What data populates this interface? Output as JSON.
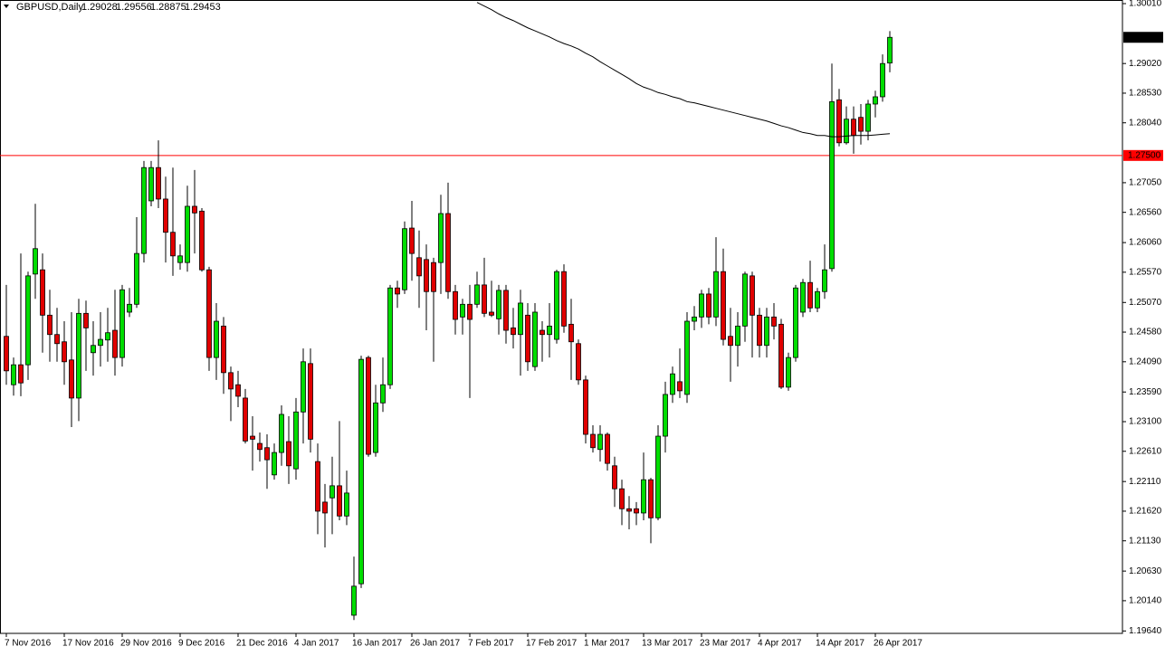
{
  "chart_data": {
    "type": "candlestick",
    "title": "GBPUSD,Daily",
    "categories": [
      "7 Nov 2016",
      null,
      null,
      null,
      null,
      null,
      null,
      null,
      "17 Nov 2016",
      null,
      null,
      null,
      null,
      null,
      null,
      null,
      "29 Nov 2016",
      null,
      null,
      null,
      null,
      null,
      null,
      null,
      "9 Dec 2016",
      null,
      null,
      null,
      null,
      null,
      null,
      null,
      "21 Dec 2016",
      null,
      null,
      null,
      null,
      null,
      null,
      null,
      "4 Jan 2017",
      null,
      null,
      null,
      null,
      null,
      null,
      null,
      "16 Jan 2017",
      null,
      null,
      null,
      null,
      null,
      null,
      null,
      "26 Jan 2017",
      null,
      null,
      null,
      null,
      null,
      null,
      null,
      "7 Feb 2017",
      null,
      null,
      null,
      null,
      null,
      null,
      null,
      "17 Feb 2017",
      null,
      null,
      null,
      null,
      null,
      null,
      null,
      "1 Mar 2017",
      null,
      null,
      null,
      null,
      null,
      null,
      null,
      "13 Mar 2017",
      null,
      null,
      null,
      null,
      null,
      null,
      null,
      "23 Mar 2017",
      null,
      null,
      null,
      null,
      null,
      null,
      null,
      "4 Apr 2017",
      null,
      null,
      null,
      null,
      null,
      null,
      null,
      "14 Apr 2017",
      null,
      null,
      null,
      null,
      null,
      null,
      null,
      "26 Apr 2017",
      null,
      null
    ],
    "open": [
      1.2451,
      1.2371,
      1.2404,
      1.2404,
      1.2554,
      1.2561,
      1.2486,
      1.2454,
      1.2442,
      1.2412,
      1.2349,
      1.2489,
      1.2424,
      1.2436,
      1.2445,
      1.2461,
      1.2416,
      1.2491,
      1.2504,
      1.2588,
      1.2675,
      1.273,
      1.2678,
      1.2623,
      1.2573,
      1.2573,
      1.2666,
      1.2658,
      1.2561,
      1.2416,
      1.2468,
      1.2391,
      1.2371,
      1.2349,
      1.2286,
      1.2274,
      1.2267,
      1.2222,
      1.2259,
      1.2277,
      1.2232,
      1.2326,
      1.2406,
      1.2244,
      1.2177,
      1.2184,
      1.2204,
      1.2154,
      1.199,
      1.2042,
      1.2416,
      1.2259,
      1.2341,
      1.2371,
      1.2531,
      1.2528,
      1.263,
      1.2581,
      1.2578,
      1.2573,
      1.2573,
      1.2654,
      1.2525,
      1.2483,
      1.2504,
      1.2504,
      1.2536,
      1.2491,
      1.248,
      1.2527,
      1.2465,
      1.2454,
      1.2486,
      1.2401,
      1.2461,
      1.2454,
      1.2446,
      1.2558,
      1.2471,
      1.2439,
      1.2379,
      1.2289,
      1.2264,
      1.2289,
      1.2237,
      1.2199,
      1.2166,
      1.2166,
      1.2159,
      1.2214,
      1.2151,
      1.2286,
      1.2355,
      1.2376,
      1.2355,
      1.2476,
      1.2483,
      1.2521,
      1.2483,
      1.2558,
      1.2451,
      1.2436,
      1.2468,
      1.2551,
      1.2486,
      1.2436,
      1.2483,
      1.2471,
      1.2367,
      1.2416,
      1.2491,
      1.254,
      1.2498,
      1.2525,
      1.2563,
      1.2842,
      1.2771,
      1.281,
      1.2813,
      1.279,
      1.2835,
      1.2847,
      1.29028
    ],
    "high": [
      1.2536,
      1.2416,
      1.2588,
      1.2558,
      1.267,
      1.2588,
      1.2528,
      1.2498,
      1.2476,
      1.2491,
      1.2513,
      1.251,
      1.2476,
      1.2491,
      1.2498,
      1.2528,
      1.2536,
      1.2531,
      1.2648,
      1.2741,
      1.2741,
      1.2775,
      1.2715,
      1.273,
      1.2603,
      1.27,
      1.2726,
      1.2663,
      1.2566,
      1.2506,
      1.2483,
      1.2401,
      1.2394,
      1.2364,
      1.2319,
      1.2292,
      1.2289,
      1.2274,
      1.2337,
      1.2319,
      1.2349,
      1.2431,
      1.2431,
      1.2274,
      1.2207,
      1.2252,
      1.2311,
      1.2229,
      1.2087,
      1.2419,
      1.2419,
      1.2371,
      1.2416,
      1.2536,
      1.2543,
      1.2641,
      1.2675,
      1.2626,
      1.2603,
      1.2581,
      1.2685,
      1.2705,
      1.2536,
      1.2513,
      1.2536,
      1.2558,
      1.2581,
      1.2543,
      1.2536,
      1.2536,
      1.2498,
      1.2528,
      1.2506,
      1.2506,
      1.2476,
      1.2506,
      1.2561,
      1.257,
      1.2513,
      1.2446,
      1.2386,
      1.2304,
      1.2304,
      1.2292,
      1.2252,
      1.2214,
      1.2187,
      1.2177,
      1.2259,
      1.2217,
      1.2304,
      1.2376,
      1.2401,
      1.2431,
      1.2491,
      1.2501,
      1.2528,
      1.2531,
      1.2615,
      1.2596,
      1.2498,
      1.2491,
      1.2558,
      1.2558,
      1.2498,
      1.2498,
      1.2506,
      1.248,
      1.2424,
      1.2536,
      1.2546,
      1.2576,
      1.2531,
      1.2603,
      1.2902,
      1.286,
      1.2831,
      1.2831,
      1.2835,
      1.2842,
      1.2857,
      1.2917,
      1.29556
    ],
    "low": [
      1.2371,
      1.2353,
      1.2352,
      1.2379,
      1.2513,
      1.2424,
      1.2409,
      1.2409,
      1.2371,
      1.2301,
      1.2311,
      1.2394,
      1.2386,
      1.2401,
      1.2409,
      1.2386,
      1.2401,
      1.2483,
      1.2498,
      1.2573,
      1.2666,
      1.2663,
      1.2573,
      1.2551,
      1.2561,
      1.2558,
      1.2588,
      1.2558,
      1.2394,
      1.2379,
      1.2356,
      1.2311,
      1.2334,
      1.2274,
      1.2229,
      1.2244,
      1.2199,
      1.2214,
      1.2237,
      1.2207,
      1.2214,
      1.2274,
      1.2259,
      1.2124,
      1.2102,
      1.2124,
      1.2147,
      1.2139,
      1.1982,
      1.2035,
      1.2252,
      1.2252,
      1.2326,
      1.2364,
      1.2498,
      1.2521,
      1.2543,
      1.2498,
      1.2461,
      1.2409,
      1.2521,
      1.2513,
      1.2454,
      1.2454,
      1.2349,
      1.2498,
      1.2483,
      1.2483,
      1.2454,
      1.2439,
      1.2431,
      1.2386,
      1.2394,
      1.2394,
      1.2409,
      1.2416,
      1.2439,
      1.2457,
      1.2379,
      1.2371,
      1.2274,
      1.2259,
      1.2244,
      1.2229,
      1.2169,
      1.2139,
      1.2132,
      1.2139,
      1.2147,
      1.2109,
      1.2147,
      1.2259,
      1.2341,
      1.2349,
      1.2341,
      1.2461,
      1.2465,
      1.2471,
      1.2468,
      1.2436,
      1.2376,
      1.2401,
      1.2442,
      1.2416,
      1.2416,
      1.2416,
      1.2446,
      1.2364,
      1.2361,
      1.2409,
      1.2483,
      1.2491,
      1.2491,
      1.2513,
      1.2558,
      1.2765,
      1.2768,
      1.2753,
      1.2768,
      1.2775,
      1.2813,
      1.2839,
      1.28875
    ],
    "close": [
      1.2394,
      1.2404,
      1.2374,
      1.2551,
      1.2596,
      1.2486,
      1.2454,
      1.2439,
      1.2409,
      1.2349,
      1.2489,
      1.2465,
      1.2436,
      1.2446,
      1.2457,
      1.2416,
      1.2528,
      1.2504,
      1.2588,
      1.273,
      1.273,
      1.2678,
      1.2623,
      1.2584,
      1.2584,
      1.2666,
      1.2655,
      1.2561,
      1.2416,
      1.2476,
      1.2391,
      1.2364,
      1.2352,
      1.2278,
      1.2281,
      1.2264,
      1.2247,
      1.2259,
      1.2322,
      1.2237,
      1.2326,
      1.2409,
      1.2281,
      1.2162,
      1.2159,
      1.2204,
      1.2154,
      1.2192,
      1.2038,
      1.2413,
      1.2256,
      1.2341,
      1.2371,
      1.2531,
      1.2521,
      1.2629,
      1.2588,
      1.2551,
      1.2525,
      1.2525,
      1.2654,
      1.2525,
      1.2479,
      1.2504,
      1.2479,
      1.2536,
      1.2489,
      1.2486,
      1.2527,
      1.2461,
      1.2454,
      1.2506,
      1.2409,
      1.2491,
      1.2454,
      1.2468,
      1.2558,
      1.2468,
      1.2442,
      1.2379,
      1.2289,
      1.2267,
      1.2289,
      1.2241,
      1.2199,
      1.2166,
      1.2162,
      1.2159,
      1.2214,
      1.2151,
      1.2286,
      1.2355,
      1.2389,
      1.2361,
      1.2476,
      1.2483,
      1.2521,
      1.2483,
      1.2558,
      1.2446,
      1.2436,
      1.2468,
      1.2554,
      1.2486,
      1.2436,
      1.2483,
      1.2468,
      1.2367,
      1.2416,
      1.2531,
      1.254,
      1.2498,
      1.2525,
      1.2561,
      1.2839,
      1.2771,
      1.281,
      1.2783,
      1.279,
      1.2835,
      1.2847,
      1.2902,
      1.29453
    ],
    "ma": {
      "color": "#000000",
      "values": [
        null,
        null,
        null,
        null,
        null,
        null,
        null,
        null,
        null,
        null,
        null,
        null,
        null,
        null,
        null,
        null,
        null,
        null,
        null,
        null,
        null,
        null,
        null,
        null,
        null,
        null,
        null,
        null,
        null,
        null,
        null,
        null,
        null,
        null,
        null,
        null,
        null,
        null,
        null,
        null,
        null,
        null,
        null,
        null,
        null,
        null,
        null,
        null,
        null,
        null,
        null,
        null,
        null,
        null,
        null,
        null,
        null,
        null,
        null,
        null,
        null,
        null,
        null,
        null,
        null,
        1.3003,
        1.2997,
        1.2991,
        1.2984,
        1.2978,
        1.2973,
        1.2967,
        1.2961,
        1.2956,
        1.2951,
        1.2946,
        1.294,
        1.2935,
        1.2931,
        1.2926,
        1.2919,
        1.2913,
        1.2905,
        1.2898,
        1.2891,
        1.2884,
        1.2877,
        1.2869,
        1.2863,
        1.2859,
        1.2854,
        1.2851,
        1.2847,
        1.2844,
        1.2839,
        1.2837,
        1.2834,
        1.2831,
        1.2828,
        1.2825,
        1.2822,
        1.2819,
        1.2816,
        1.2813,
        1.281,
        1.2807,
        1.2803,
        1.2799,
        1.2796,
        1.2792,
        1.2788,
        1.2786,
        1.2783,
        1.2783,
        1.2781,
        1.2781,
        1.2782,
        1.2783,
        1.2783,
        1.2783,
        1.2784,
        1.2785,
        1.2786
      ]
    },
    "up_color": "#00dd00",
    "down_color": "#e00000",
    "wick_color": "#000000",
    "hline": {
      "value": 1.275,
      "label": "1.27500",
      "color": "#ff0000"
    },
    "ylim": [
      1.196,
      1.3007
    ],
    "yticks": [
      {
        "value": 1.3001,
        "label": "1.30010"
      },
      {
        "value": 1.2902,
        "label": "1.29020"
      },
      {
        "value": 1.2853,
        "label": "1.28530"
      },
      {
        "value": 1.2804,
        "label": "1.28040"
      },
      {
        "value": 1.2705,
        "label": "1.27050"
      },
      {
        "value": 1.2656,
        "label": "1.26560"
      },
      {
        "value": 1.2606,
        "label": "1.26060"
      },
      {
        "value": 1.2557,
        "label": "1.25570"
      },
      {
        "value": 1.2507,
        "label": "1.25070"
      },
      {
        "value": 1.2458,
        "label": "1.24580"
      },
      {
        "value": 1.2409,
        "label": "1.24090"
      },
      {
        "value": 1.2359,
        "label": "1.23590"
      },
      {
        "value": 1.231,
        "label": "1.23100"
      },
      {
        "value": 1.2261,
        "label": "1.22610"
      },
      {
        "value": 1.2211,
        "label": "1.22110"
      },
      {
        "value": 1.2162,
        "label": "1.21620"
      },
      {
        "value": 1.2113,
        "label": "1.21130"
      },
      {
        "value": 1.2063,
        "label": "1.20630"
      },
      {
        "value": 1.2014,
        "label": "1.20140"
      },
      {
        "value": 1.1964,
        "label": "1.19640"
      }
    ],
    "grid": false
  }
}
